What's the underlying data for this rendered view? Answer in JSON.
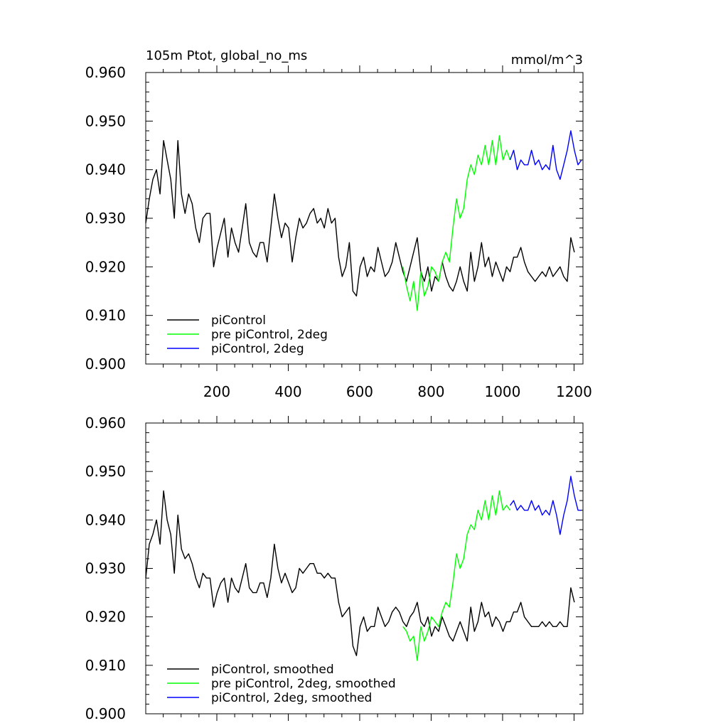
{
  "chart_data": [
    {
      "type": "line",
      "title_left": "105m Ptot, global_no_ms",
      "title_right": "mmol/m^3",
      "xlim": [
        1,
        1225
      ],
      "ylim": [
        0.9,
        0.96
      ],
      "y_ticks": [
        "0.900",
        "0.910",
        "0.920",
        "0.930",
        "0.940",
        "0.950",
        "0.960"
      ],
      "x_ticks": [
        "200",
        "400",
        "600",
        "800",
        "1000",
        "1200"
      ],
      "legend_position": "bottom-left",
      "series": [
        {
          "name": "piControl",
          "color": "#000000",
          "x_start": 1,
          "x_step": 10,
          "values": [
            0.929,
            0.934,
            0.938,
            0.94,
            0.935,
            0.946,
            0.942,
            0.938,
            0.93,
            0.946,
            0.935,
            0.931,
            0.935,
            0.933,
            0.928,
            0.925,
            0.93,
            0.931,
            0.931,
            0.92,
            0.924,
            0.927,
            0.93,
            0.922,
            0.928,
            0.925,
            0.923,
            0.928,
            0.933,
            0.925,
            0.923,
            0.922,
            0.925,
            0.925,
            0.921,
            0.928,
            0.935,
            0.93,
            0.926,
            0.929,
            0.928,
            0.921,
            0.926,
            0.93,
            0.928,
            0.929,
            0.931,
            0.932,
            0.929,
            0.93,
            0.928,
            0.932,
            0.929,
            0.93,
            0.922,
            0.918,
            0.92,
            0.925,
            0.915,
            0.914,
            0.92,
            0.922,
            0.918,
            0.92,
            0.919,
            0.924,
            0.921,
            0.918,
            0.919,
            0.921,
            0.925,
            0.922,
            0.919,
            0.917,
            0.92,
            0.923,
            0.926,
            0.919,
            0.917,
            0.92,
            0.915,
            0.918,
            0.917,
            0.921,
            0.918,
            0.916,
            0.915,
            0.917,
            0.92,
            0.917,
            0.915,
            0.923,
            0.917,
            0.92,
            0.925,
            0.92,
            0.922,
            0.918,
            0.921,
            0.919,
            0.917,
            0.92,
            0.919,
            0.922,
            0.922,
            0.924,
            0.921,
            0.919,
            0.918,
            0.917,
            0.918,
            0.919,
            0.918,
            0.92,
            0.918,
            0.919,
            0.92,
            0.918,
            0.917,
            0.926,
            0.923
          ]
        },
        {
          "name": "pre piControl, 2deg",
          "color": "#00ff00",
          "x_start": 721,
          "x_step": 10,
          "values": [
            0.92,
            0.916,
            0.913,
            0.917,
            0.911,
            0.919,
            0.914,
            0.916,
            0.92,
            0.919,
            0.917,
            0.921,
            0.923,
            0.921,
            0.928,
            0.934,
            0.93,
            0.932,
            0.938,
            0.941,
            0.939,
            0.943,
            0.941,
            0.945,
            0.941,
            0.946,
            0.941,
            0.947,
            0.942,
            0.944,
            0.942
          ]
        },
        {
          "name": "piControl, 2deg",
          "color": "#0000ff",
          "x_start": 1021,
          "x_step": 10,
          "values": [
            0.942,
            0.944,
            0.94,
            0.942,
            0.941,
            0.941,
            0.944,
            0.941,
            0.942,
            0.94,
            0.941,
            0.94,
            0.945,
            0.94,
            0.938,
            0.941,
            0.944,
            0.948,
            0.944,
            0.941,
            0.942
          ]
        }
      ]
    },
    {
      "type": "line",
      "xlim": [
        1,
        1225
      ],
      "ylim": [
        0.9,
        0.96
      ],
      "y_ticks": [
        "0.900",
        "0.910",
        "0.920",
        "0.930",
        "0.940",
        "0.950",
        "0.960"
      ],
      "legend_position": "bottom-left",
      "series": [
        {
          "name": "piControl, smoothed",
          "color": "#000000",
          "x_start": 1,
          "x_step": 10,
          "values": [
            0.928,
            0.935,
            0.937,
            0.94,
            0.935,
            0.946,
            0.94,
            0.937,
            0.929,
            0.941,
            0.934,
            0.932,
            0.933,
            0.931,
            0.928,
            0.926,
            0.929,
            0.928,
            0.928,
            0.922,
            0.925,
            0.927,
            0.928,
            0.923,
            0.928,
            0.926,
            0.925,
            0.928,
            0.931,
            0.926,
            0.925,
            0.925,
            0.927,
            0.927,
            0.924,
            0.928,
            0.935,
            0.93,
            0.927,
            0.929,
            0.927,
            0.925,
            0.926,
            0.93,
            0.929,
            0.93,
            0.931,
            0.931,
            0.929,
            0.929,
            0.928,
            0.929,
            0.928,
            0.928,
            0.923,
            0.92,
            0.921,
            0.922,
            0.914,
            0.912,
            0.918,
            0.92,
            0.917,
            0.918,
            0.918,
            0.922,
            0.92,
            0.918,
            0.919,
            0.921,
            0.922,
            0.921,
            0.919,
            0.918,
            0.92,
            0.921,
            0.923,
            0.919,
            0.918,
            0.92,
            0.916,
            0.918,
            0.917,
            0.92,
            0.918,
            0.916,
            0.915,
            0.917,
            0.919,
            0.917,
            0.915,
            0.922,
            0.917,
            0.919,
            0.923,
            0.92,
            0.921,
            0.918,
            0.92,
            0.919,
            0.917,
            0.919,
            0.919,
            0.921,
            0.921,
            0.923,
            0.92,
            0.919,
            0.918,
            0.918,
            0.918,
            0.919,
            0.918,
            0.919,
            0.918,
            0.918,
            0.919,
            0.918,
            0.918,
            0.926,
            0.923
          ]
        },
        {
          "name": "pre piControl, 2deg, smoothed",
          "color": "#00ff00",
          "x_start": 721,
          "x_step": 10,
          "values": [
            0.918,
            0.917,
            0.915,
            0.916,
            0.911,
            0.918,
            0.915,
            0.917,
            0.92,
            0.919,
            0.918,
            0.921,
            0.923,
            0.922,
            0.927,
            0.933,
            0.93,
            0.932,
            0.937,
            0.939,
            0.938,
            0.942,
            0.94,
            0.944,
            0.94,
            0.945,
            0.941,
            0.946,
            0.942,
            0.943,
            0.942
          ]
        },
        {
          "name": "piControl, 2deg, smoothed",
          "color": "#0000ff",
          "x_start": 1021,
          "x_step": 10,
          "values": [
            0.943,
            0.944,
            0.942,
            0.943,
            0.942,
            0.942,
            0.944,
            0.942,
            0.943,
            0.941,
            0.942,
            0.941,
            0.944,
            0.941,
            0.937,
            0.941,
            0.944,
            0.949,
            0.945,
            0.942,
            0.942
          ]
        }
      ]
    }
  ]
}
